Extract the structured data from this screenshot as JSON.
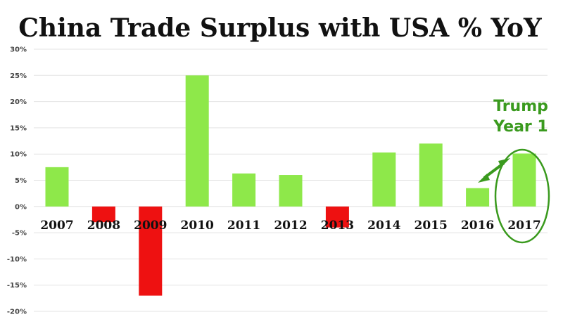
{
  "chart_data": {
    "type": "bar",
    "title": "China Trade Surplus with USA % YoY",
    "categories": [
      "2007",
      "2008",
      "2009",
      "2010",
      "2011",
      "2012",
      "2013",
      "2014",
      "2015",
      "2016",
      "2017"
    ],
    "values": [
      7.5,
      -3,
      -17,
      25,
      6.3,
      6,
      -4,
      10.3,
      12,
      3.5,
      10.1
    ],
    "ylim": [
      -20,
      30
    ],
    "y_ticks": [
      "30%",
      "25%",
      "20%",
      "15%",
      "10%",
      "5%",
      "0%",
      "-5%",
      "-10%",
      "-15%",
      "-20%"
    ],
    "grid": true,
    "colors": {
      "positive": "#8ee84a",
      "negative": "#ee1111",
      "annotation": "#3a9a1e"
    },
    "annotation": {
      "lines": [
        "Trump",
        "Year 1"
      ],
      "target_category": "2017"
    }
  }
}
